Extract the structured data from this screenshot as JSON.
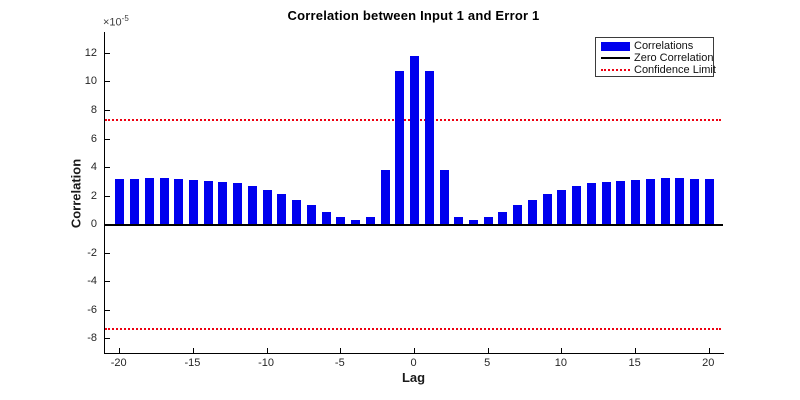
{
  "colors": {
    "bar": "#0000ee",
    "zero_line": "#000000",
    "confidence": "#ee0011",
    "axis": "#000000",
    "tick_label": "#262626"
  },
  "chart_data": {
    "type": "bar",
    "title": "Correlation between Input 1 and Error 1",
    "xlabel": "Lag",
    "ylabel": "Correlation",
    "y_multiplier": {
      "base": "×10",
      "exponent": "-5"
    },
    "xlim": [
      -21,
      21
    ],
    "ylim": [
      -9,
      13.5
    ],
    "x_ticks": [
      -20,
      -15,
      -10,
      -5,
      0,
      5,
      10,
      15,
      20
    ],
    "y_ticks": [
      -8,
      -6,
      -4,
      -2,
      0,
      2,
      4,
      6,
      8,
      10,
      12
    ],
    "x": [
      -20,
      -19,
      -18,
      -17,
      -16,
      -15,
      -14,
      -13,
      -12,
      -11,
      -10,
      -9,
      -8,
      -7,
      -6,
      -5,
      -4,
      -3,
      -2,
      -1,
      0,
      1,
      2,
      3,
      4,
      5,
      6,
      7,
      8,
      9,
      10,
      11,
      12,
      13,
      14,
      15,
      16,
      17,
      18,
      19,
      20
    ],
    "values": [
      3.2,
      3.2,
      3.25,
      3.25,
      3.2,
      3.1,
      3.05,
      3.0,
      2.9,
      2.7,
      2.45,
      2.15,
      1.75,
      1.35,
      0.9,
      0.55,
      0.3,
      0.55,
      3.85,
      10.8,
      11.85,
      10.8,
      3.85,
      0.55,
      0.3,
      0.55,
      0.9,
      1.35,
      1.75,
      2.15,
      2.45,
      2.7,
      2.9,
      3.0,
      3.05,
      3.1,
      3.2,
      3.25,
      3.25,
      3.2,
      3.2
    ],
    "zero_line": 0,
    "confidence_limits": [
      7.35,
      -7.35
    ],
    "grid": false,
    "legend_position": "top-right",
    "legend": [
      {
        "label": "Correlations",
        "swatch": "bar"
      },
      {
        "label": "Zero Correlation",
        "swatch": "solid-line"
      },
      {
        "label": "Confidence Limit",
        "swatch": "dotted-line"
      }
    ]
  }
}
